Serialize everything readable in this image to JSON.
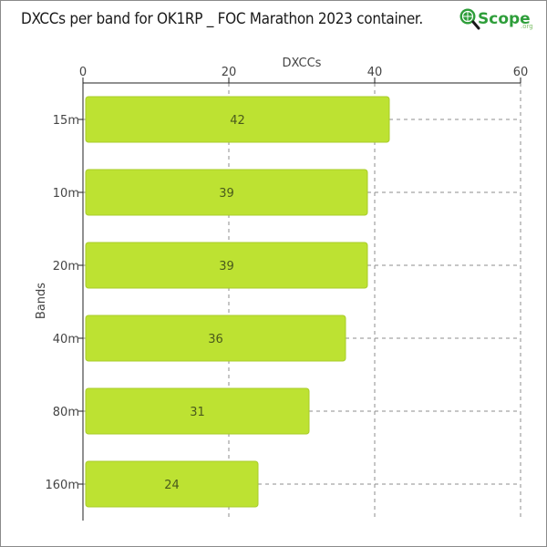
{
  "title": "DXCCs per band for OK1RP _ FOC Marathon 2023 container.",
  "logo": {
    "text": "Scope",
    "suffix": ".org",
    "icon": "magnifier-globe-icon",
    "color": "#2e9e3a"
  },
  "colors": {
    "bar": "#bde232",
    "bar_border": "#a9cc2a",
    "grid": "#8c8c8c",
    "axis": "#222222"
  },
  "chart_data": {
    "type": "bar",
    "orientation": "horizontal",
    "title": "DXCCs per band for OK1RP _ FOC Marathon 2023 container.",
    "xlabel": "DXCCs",
    "ylabel": "Bands",
    "x_axis_position": "top",
    "xlim": [
      0,
      60
    ],
    "xticks": [
      0,
      20,
      40,
      60
    ],
    "grid": "x dashed",
    "categories": [
      "15m",
      "10m",
      "20m",
      "40m",
      "80m",
      "160m"
    ],
    "values": [
      42,
      39,
      39,
      36,
      31,
      24
    ],
    "data_labels": [
      "42",
      "39",
      "39",
      "36",
      "31",
      "24"
    ]
  }
}
